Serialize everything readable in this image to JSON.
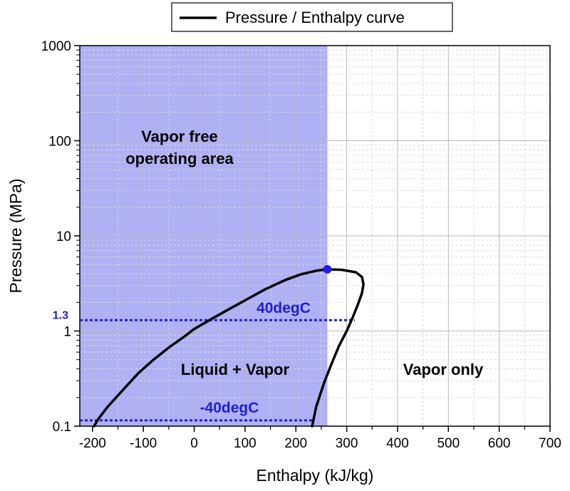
{
  "chart_data": {
    "type": "line",
    "legend": {
      "label": "Pressure / Enthalpy curve",
      "position": "top-center"
    },
    "xlabel": "Enthalpy (kJ/kg)",
    "ylabel": "Pressure (MPa)",
    "xlim": [
      -225,
      700
    ],
    "ylim": [
      0.1,
      1000
    ],
    "yscale": "log",
    "grid": true,
    "x_ticks": [
      -200,
      -100,
      0,
      100,
      200,
      300,
      400,
      500,
      600,
      700
    ],
    "x_tick_labels": [
      "-200",
      "-100",
      "0",
      "100",
      "200",
      "300",
      "400",
      "500",
      "600",
      "700"
    ],
    "y_ticks": [
      0.1,
      1,
      10,
      100,
      1000
    ],
    "y_tick_labels": [
      "0.1",
      "1",
      "10",
      "100",
      "1000"
    ],
    "curve_color": "#000000",
    "series": [
      {
        "name": "Pressure / Enthalpy curve",
        "points": [
          [
            -197,
            0.1
          ],
          [
            -188,
            0.12
          ],
          [
            -170,
            0.16
          ],
          [
            -140,
            0.24
          ],
          [
            -110,
            0.36
          ],
          [
            -80,
            0.5
          ],
          [
            -50,
            0.67
          ],
          [
            -20,
            0.87
          ],
          [
            0,
            1.05
          ],
          [
            30,
            1.3
          ],
          [
            60,
            1.6
          ],
          [
            100,
            2.1
          ],
          [
            140,
            2.75
          ],
          [
            180,
            3.45
          ],
          [
            210,
            3.95
          ],
          [
            240,
            4.3
          ],
          [
            262,
            4.45
          ],
          [
            290,
            4.4
          ],
          [
            318,
            4.15
          ],
          [
            330,
            3.7
          ],
          [
            333,
            3.1
          ],
          [
            330,
            2.5
          ],
          [
            322,
            1.9
          ],
          [
            312,
            1.4
          ],
          [
            300,
            1.0
          ],
          [
            285,
            0.7
          ],
          [
            270,
            0.45
          ],
          [
            255,
            0.28
          ],
          [
            240,
            0.16
          ],
          [
            232,
            0.1
          ]
        ]
      }
    ],
    "critical_point": {
      "x": 262,
      "y": 4.45,
      "color": "#1f1fe0"
    },
    "shaded_region": {
      "label": "Vapor free\noperating area",
      "label_lines": [
        "Vapor free",
        "operating area"
      ],
      "x_range": [
        -225,
        262
      ],
      "y_range": [
        0.1,
        1000
      ],
      "color": "#b0b0f4"
    },
    "isotherms": [
      {
        "label": "40degC",
        "pressure": 1.3,
        "x_from": -225,
        "x_to": 316,
        "color": "#1f1fd0"
      },
      {
        "label": "-40degC",
        "pressure": 0.115,
        "x_from": -225,
        "x_to": 232,
        "color": "#1f1fd0"
      }
    ],
    "pressure_marker_label": "1.3",
    "annotations": [
      {
        "text": "Liquid + Vapor"
      },
      {
        "text": "Vapor only"
      }
    ]
  }
}
